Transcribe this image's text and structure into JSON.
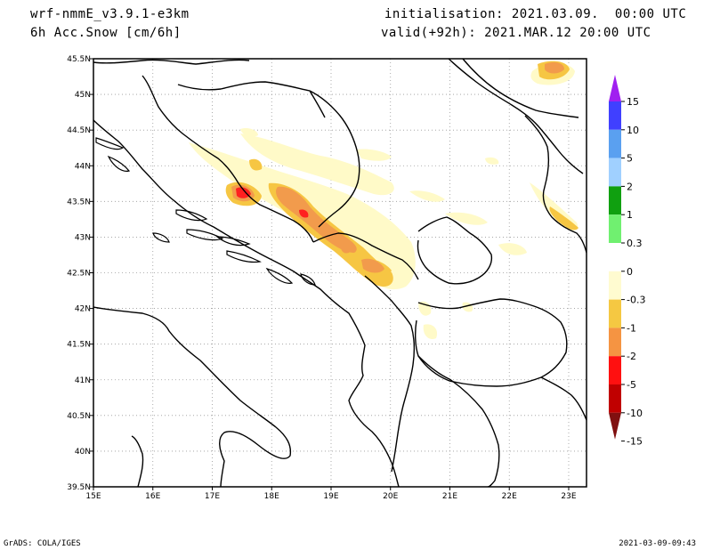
{
  "header": {
    "model": "wrf-nmmE_v3.9.1-e3km",
    "variable": "6h Acc.Snow [cm/6h]",
    "initialisation": "initialisation: 2021.03.09.  00:00 UTC",
    "valid": "valid(+92h): 2021.MAR.12 20:00 UTC"
  },
  "footer": {
    "left": "GrADS: COLA/IGES",
    "right": "2021-03-09-09:43"
  },
  "map": {
    "lon_range": [
      15,
      23.3
    ],
    "lat_range": [
      39.5,
      45.5
    ],
    "x_ticks": [
      "15E",
      "16E",
      "17E",
      "18E",
      "19E",
      "20E",
      "21E",
      "22E",
      "23E"
    ],
    "y_ticks": [
      "39.5N",
      "40N",
      "40.5N",
      "41N",
      "41.5N",
      "42N",
      "42.5N",
      "43N",
      "43.5N",
      "44N",
      "44.5N",
      "45N",
      "45.5N"
    ],
    "grid": "dotted"
  },
  "legend": {
    "labels": [
      "15",
      "10",
      "5",
      "2",
      "1",
      "0.3",
      "0",
      "-0.3",
      "-1",
      "-2",
      "-5",
      "-10",
      "-15"
    ],
    "colors": [
      "#a020f0",
      "#4040ff",
      "#5aa0f0",
      "#a0d0ff",
      "#10a010",
      "#70f070",
      "#ffffff",
      "#fffbd0",
      "#f5c842",
      "#f59442",
      "#ff1010",
      "#c00000",
      "#801010"
    ]
  },
  "snow_colors": {
    "light": "#fffac8",
    "yellow": "#f6c643",
    "orange": "#f29b4c",
    "red": "#ff2020"
  }
}
